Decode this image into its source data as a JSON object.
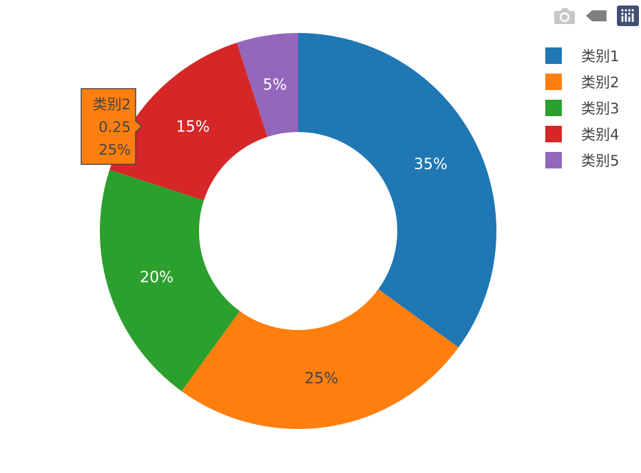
{
  "chart_data": {
    "type": "pie",
    "hole": 0.5,
    "categories": [
      "类别1",
      "类别2",
      "类别3",
      "类别4",
      "类别5"
    ],
    "values": [
      0.35,
      0.25,
      0.2,
      0.15,
      0.05
    ],
    "labels": [
      "35%",
      "25%",
      "20%",
      "15%",
      "5%"
    ],
    "colors": [
      "#1f77b4",
      "#ff7f0e",
      "#2ca02c",
      "#d62728",
      "#9467bd"
    ],
    "direction": "clockwise",
    "sort": false,
    "legend_position": "top-right",
    "hover": {
      "category": "类别2",
      "value": "0.25",
      "percent": "25%",
      "color": "#ff7f0e"
    }
  },
  "modebar": {
    "buttons": [
      "camera-icon",
      "tag-icon",
      "plotly-logo-icon"
    ]
  }
}
